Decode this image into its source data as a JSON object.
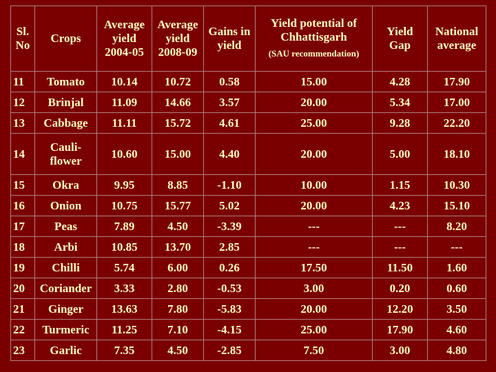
{
  "table": {
    "header": [
      "Sl.\nNo",
      "Crops",
      "Average\nyield\n2004-05",
      "Average\nyield\n2008-09",
      "Gains in\nyield",
      {
        "text": "Yield potential of\nChhattisgarh",
        "note": "(SAU recommendation)"
      },
      "Yield\nGap",
      "National\naverage"
    ],
    "rows": [
      [
        "11",
        "Tomato",
        "10.14",
        "10.72",
        "0.58",
        "15.00",
        "4.28",
        "17.90"
      ],
      [
        "12",
        "Brinjal",
        "11.09",
        "14.66",
        "3.57",
        "20.00",
        "5.34",
        "17.00"
      ],
      [
        "13",
        "Cabbage",
        "11.11",
        "15.72",
        "4.61",
        "25.00",
        "9.28",
        "22.20"
      ],
      [
        "14",
        "Cauli-\nflower",
        "10.60",
        "15.00",
        "4.40",
        "20.00",
        "5.00",
        "18.10"
      ],
      [
        "15",
        "Okra",
        "9.95",
        "8.85",
        "-1.10",
        "10.00",
        "1.15",
        "10.30"
      ],
      [
        "16",
        "Onion",
        "10.75",
        "15.77",
        "5.02",
        "20.00",
        "4.23",
        "15.10"
      ],
      [
        "17",
        "Peas",
        "7.89",
        "4.50",
        "-3.39",
        "---",
        "---",
        "8.20"
      ],
      [
        "18",
        "Arbi",
        "10.85",
        "13.70",
        "2.85",
        "---",
        "---",
        "---"
      ],
      [
        "19",
        "Chilli",
        "5.74",
        "6.00",
        "0.26",
        "17.50",
        "11.50",
        "1.60"
      ],
      [
        "20",
        "Coriander",
        "3.33",
        "2.80",
        "-0.53",
        "3.00",
        "0.20",
        "0.60"
      ],
      [
        "21",
        "Ginger",
        "13.63",
        "7.80",
        "-5.83",
        "20.00",
        "12.20",
        "3.50"
      ],
      [
        "22",
        "Turmeric",
        "11.25",
        "7.10",
        "-4.15",
        "25.00",
        "17.90",
        "4.60"
      ],
      [
        "23",
        "Garlic",
        "7.35",
        "4.50",
        "-2.85",
        "7.50",
        "3.00",
        "4.80"
      ]
    ]
  }
}
